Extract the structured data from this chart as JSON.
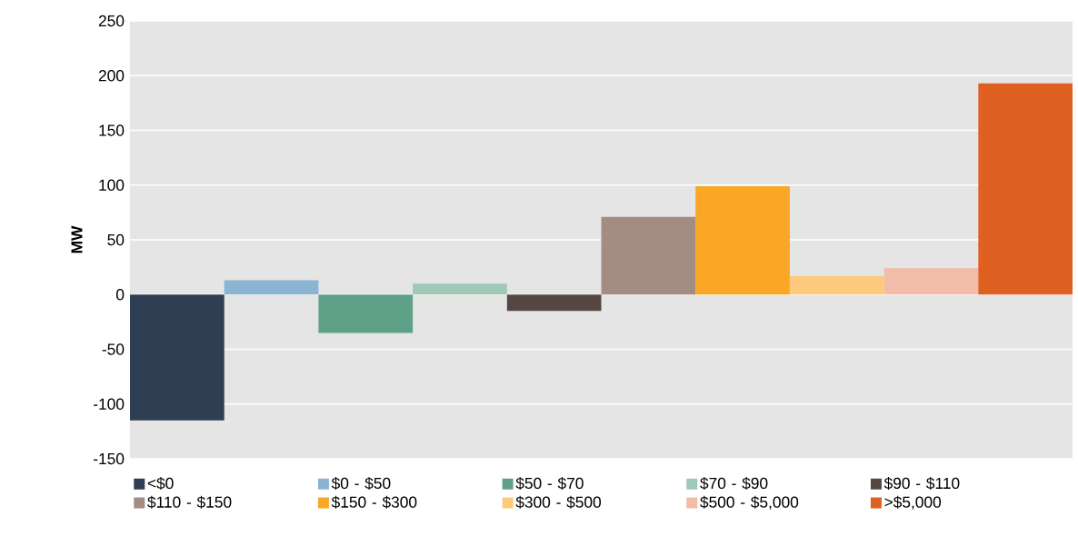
{
  "chart_data": {
    "type": "bar",
    "ylabel": "MW",
    "categories": [
      null
    ],
    "series": [
      {
        "name": "<$0",
        "color": "#2f3e52",
        "values": [
          -115
        ]
      },
      {
        "name": "$0 - $50",
        "color": "#8ab4d2",
        "values": [
          13
        ]
      },
      {
        "name": "$50 - $70",
        "color": "#5fa088",
        "values": [
          -35
        ]
      },
      {
        "name": "$70 - $90",
        "color": "#a0c8b6",
        "values": [
          10
        ]
      },
      {
        "name": "$90 - $110",
        "color": "#554842",
        "values": [
          -15
        ]
      },
      {
        "name": "$110 - $150",
        "color": "#a38c82",
        "values": [
          71
        ]
      },
      {
        "name": "$150 - $300",
        "color": "#faa727",
        "values": [
          99
        ]
      },
      {
        "name": "$300 - $500",
        "color": "#fdca7b",
        "values": [
          17
        ]
      },
      {
        "name": "$500 - $5,000",
        "color": "#f1bda8",
        "values": [
          24
        ]
      },
      {
        "name": ">$5,000",
        "color": "#e06022",
        "values": [
          193
        ]
      }
    ],
    "ylim": [
      -150,
      250
    ],
    "yticks": [
      -150,
      -100,
      -50,
      0,
      50,
      100,
      150,
      200,
      250
    ],
    "grid": "y",
    "legend": "bottom",
    "tick_labels": "y"
  }
}
